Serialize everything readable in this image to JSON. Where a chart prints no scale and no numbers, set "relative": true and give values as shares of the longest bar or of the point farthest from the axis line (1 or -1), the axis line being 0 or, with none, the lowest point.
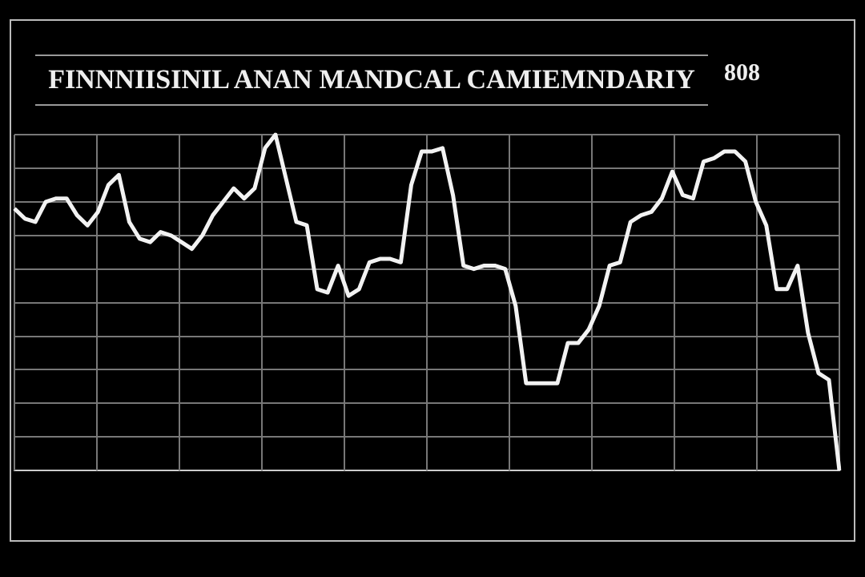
{
  "chart_data": {
    "type": "line",
    "title": "FINNNIISINIL ANAN MANDCAL CAMIEMNDARIY",
    "annotations": [
      "808"
    ],
    "relative": true,
    "grid": true,
    "legend": false,
    "marker": "none",
    "line_style": "solid",
    "categories": [
      null,
      null,
      null,
      null,
      null,
      null,
      null,
      null,
      null,
      null,
      null,
      null,
      null,
      null,
      null,
      null,
      null,
      null,
      null,
      null,
      null,
      null,
      null,
      null,
      null,
      null,
      null,
      null,
      null,
      null,
      null,
      null,
      null,
      null,
      null,
      null,
      null,
      null,
      null,
      null,
      null,
      null,
      null,
      null,
      null,
      null,
      null,
      null,
      null,
      null,
      null,
      null,
      null,
      null,
      null,
      null,
      null,
      null,
      null,
      null,
      null,
      null,
      null,
      null,
      null,
      null,
      null,
      null,
      null,
      null,
      null,
      null,
      null,
      null,
      null,
      null,
      null,
      null,
      null,
      null
    ],
    "series": [
      {
        "color": "#f2f2f2",
        "values": [
          0.78,
          0.75,
          0.74,
          0.8,
          0.81,
          0.81,
          0.76,
          0.73,
          0.77,
          0.85,
          0.88,
          0.74,
          0.69,
          0.68,
          0.71,
          0.7,
          0.68,
          0.66,
          0.7,
          0.76,
          0.8,
          0.84,
          0.81,
          0.84,
          0.96,
          1,
          0.87,
          0.74,
          0.73,
          0.54,
          0.53,
          0.61,
          0.52,
          0.54,
          0.62,
          0.63,
          0.63,
          0.62,
          0.85,
          0.95,
          0.95,
          0.96,
          0.82,
          0.61,
          0.6,
          0.61,
          0.61,
          0.6,
          0.49,
          0.26,
          0.26,
          0.26,
          0.26,
          0.38,
          0.38,
          0.42,
          0.49,
          0.61,
          0.62,
          0.74,
          0.76,
          0.77,
          0.81,
          0.89,
          0.82,
          0.81,
          0.92,
          0.93,
          0.95,
          0.95,
          0.92,
          0.8,
          0.73,
          0.54,
          0.54,
          0.61,
          0.41,
          0.29,
          0.27,
          0
        ]
      }
    ]
  }
}
